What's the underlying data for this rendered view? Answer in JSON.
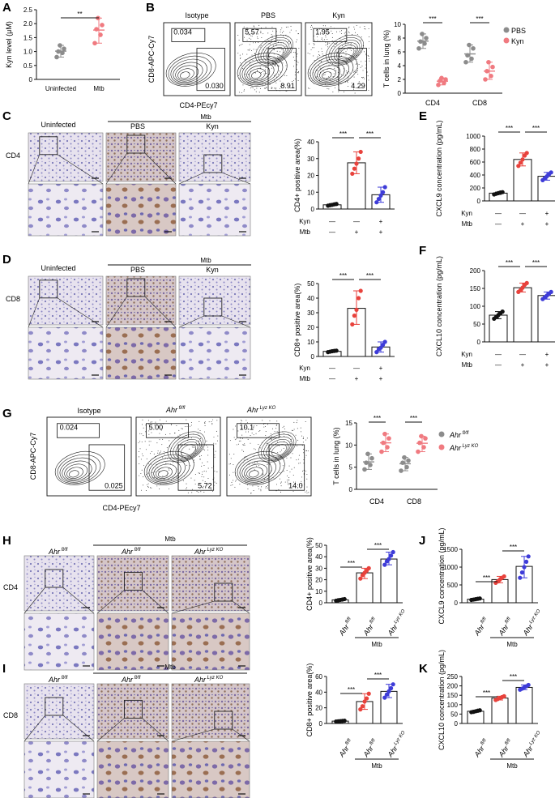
{
  "panel_labels": [
    "A",
    "B",
    "C",
    "D",
    "E",
    "F",
    "G",
    "H",
    "I",
    "J",
    "K"
  ],
  "colors": {
    "black": "#111111",
    "grey": "#8c8c8c",
    "red": "#e8423c",
    "pink": "#f07a80",
    "blue": "#3e3cd8",
    "tissue": "#ddd6e8",
    "tissue_b": "#c9b7b0"
  },
  "common": {
    "uninfected": "Uninfected",
    "mtb": "Mtb",
    "pbs": "PBS",
    "kyn": "Kyn",
    "isotype": "Isotype",
    "cd4": "CD4",
    "cd8": "CD8",
    "ahr_ff": "Ahr",
    "ff_sup": "fl/fl",
    "ahr_ko": "Ahr",
    "ko_sup": "Lyz KO",
    "minus": "—",
    "plus": "+",
    "cd8_axis": "CD8-APC-Cy7",
    "cd4_axis": "CD4-PEcy7"
  },
  "panel_b_flow": {
    "gates": [
      [
        "0.034",
        "0.030"
      ],
      [
        "5.57",
        "8.91"
      ],
      [
        "1.95",
        "4.29"
      ]
    ]
  },
  "panel_g_flow": {
    "gates": [
      [
        "0.024",
        "0.025"
      ],
      [
        "5.00",
        "5.72"
      ],
      [
        "10.1",
        "14.0"
      ]
    ]
  },
  "chart_data": [
    {
      "panel": "A",
      "type": "scatter",
      "ylabel": "Kyn level (μM)",
      "ylim": [
        0,
        2.5
      ],
      "yticks": [
        "0",
        "0.5",
        "1.0",
        "1.5",
        "2.0",
        "2.5"
      ],
      "categories": [
        "Uninfected",
        "Mtb"
      ],
      "values": [
        [
          0.8,
          0.95,
          1.0,
          1.1,
          1.22
        ],
        [
          1.3,
          1.6,
          1.8,
          1.95,
          2.2
        ]
      ],
      "means": [
        1.0,
        1.8
      ],
      "sig": "**"
    },
    {
      "panel": "B",
      "type": "scatter",
      "ylabel": "T cells in lung (%)",
      "ylim": [
        0,
        10
      ],
      "yticks": [
        "0",
        "2",
        "4",
        "6",
        "8",
        "10"
      ],
      "categories": [
        "CD4",
        "CD8"
      ],
      "legend": [
        "PBS",
        "Kyn"
      ],
      "series": [
        {
          "name": "PBS",
          "values": [
            [
              6.5,
              7.2,
              7.5,
              8.0,
              8.6
            ],
            [
              4.5,
              5.0,
              5.5,
              6.5,
              7.0
            ]
          ]
        },
        {
          "name": "Kyn",
          "values": [
            [
              1.2,
              1.5,
              1.8,
              2.0,
              2.2
            ],
            [
              2.0,
              2.5,
              3.2,
              3.8,
              4.5
            ]
          ]
        }
      ],
      "sig": [
        "***",
        "***"
      ]
    },
    {
      "panel": "C",
      "type": "bar",
      "ylabel": "CD4+ positive area(%)",
      "ylim": [
        0,
        40
      ],
      "yticks": [
        "0",
        "10",
        "20",
        "30",
        "40"
      ],
      "values": [
        2.5,
        27.5,
        8.5
      ],
      "points": [
        [
          2.0,
          2.3,
          2.5,
          2.8,
          3.0
        ],
        [
          21,
          24,
          27,
          30,
          34
        ],
        [
          4,
          6,
          8,
          10,
          13
        ]
      ],
      "sig": [
        "***",
        "***"
      ],
      "kyn": [
        "—",
        "—",
        "+"
      ],
      "mtb": [
        "—",
        "+",
        "+"
      ]
    },
    {
      "panel": "D",
      "type": "bar",
      "ylabel": "CD8+ positive area(%)",
      "ylim": [
        0,
        50
      ],
      "yticks": [
        "0",
        "10",
        "20",
        "30",
        "40",
        "50"
      ],
      "values": [
        3.5,
        33,
        6.5
      ],
      "points": [
        [
          3,
          3.3,
          3.6,
          3.8,
          4
        ],
        [
          22,
          28,
          32,
          40,
          45
        ],
        [
          3,
          5,
          6,
          8,
          10
        ]
      ],
      "sig": [
        "***",
        "***"
      ],
      "kyn": [
        "—",
        "—",
        "+"
      ],
      "mtb": [
        "—",
        "+",
        "+"
      ]
    },
    {
      "panel": "E",
      "type": "bar",
      "ylabel": "CXCL9 concentration (pg/mL)",
      "ylim": [
        0,
        1000
      ],
      "yticks": [
        "0",
        "200",
        "400",
        "600",
        "800",
        "1000"
      ],
      "values": [
        120,
        640,
        380
      ],
      "points": [
        [
          100,
          110,
          120,
          130,
          135
        ],
        [
          540,
          590,
          640,
          700,
          740
        ],
        [
          320,
          350,
          380,
          410,
          440
        ]
      ],
      "sig": [
        "***",
        "***"
      ],
      "kyn": [
        "—",
        "—",
        "+"
      ],
      "mtb": [
        "—",
        "+",
        "+"
      ]
    },
    {
      "panel": "F",
      "type": "bar",
      "ylabel": "CXCL10 concentration (pg/mL)",
      "ylim": [
        0,
        200
      ],
      "yticks": [
        "0",
        "50",
        "100",
        "150",
        "200"
      ],
      "values": [
        75,
        152,
        130
      ],
      "points": [
        [
          65,
          70,
          75,
          80,
          85
        ],
        [
          140,
          145,
          152,
          160,
          165
        ],
        [
          120,
          125,
          130,
          135,
          140
        ]
      ],
      "sig": [
        "***",
        "***"
      ],
      "kyn": [
        "—",
        "—",
        "+"
      ],
      "mtb": [
        "—",
        "+",
        "+"
      ]
    },
    {
      "panel": "G",
      "type": "scatter",
      "ylabel": "T cells in lung (%)",
      "ylim": [
        0,
        15
      ],
      "yticks": [
        "0",
        "5",
        "10",
        "15"
      ],
      "categories": [
        "CD4",
        "CD8"
      ],
      "series": [
        {
          "name": "Ahr fl/fl",
          "values": [
            [
              4.5,
              5.5,
              6,
              7,
              8
            ],
            [
              4.2,
              5,
              6,
              6.5,
              7.2
            ]
          ]
        },
        {
          "name": "Ahr Lyz KO",
          "values": [
            [
              8.5,
              9.5,
              10.5,
              11.5,
              12.5
            ],
            [
              8.5,
              9.5,
              10.5,
              11.5,
              12
            ]
          ]
        }
      ],
      "sig": [
        "***",
        "***"
      ]
    },
    {
      "panel": "H",
      "type": "bar",
      "ylabel": "CD4+ positive area(%)",
      "ylim": [
        0,
        50
      ],
      "yticks": [
        "0",
        "10",
        "20",
        "30",
        "40",
        "50"
      ],
      "values": [
        2.5,
        26,
        38
      ],
      "points": [
        [
          1.8,
          2.2,
          2.5,
          2.8,
          3.2
        ],
        [
          21,
          24,
          26,
          28,
          30
        ],
        [
          33,
          36,
          38,
          41,
          44
        ]
      ],
      "sig": [
        "***",
        "***"
      ]
    },
    {
      "panel": "I",
      "type": "bar",
      "ylabel": "CD8+ positive area(%)",
      "ylim": [
        0,
        60
      ],
      "yticks": [
        "0",
        "20",
        "40",
        "60"
      ],
      "values": [
        3,
        28,
        41
      ],
      "points": [
        [
          2.5,
          2.8,
          3,
          3.2,
          3.5
        ],
        [
          18,
          22,
          28,
          32,
          38
        ],
        [
          33,
          37,
          41,
          45,
          50
        ]
      ],
      "sig": [
        "***",
        "***"
      ]
    },
    {
      "panel": "J",
      "type": "bar",
      "ylabel": "CXCL9 concentration (pg/mL)",
      "ylim": [
        0,
        1500
      ],
      "yticks": [
        "0",
        "500",
        "1000",
        "1500"
      ],
      "values": [
        100,
        650,
        1020
      ],
      "points": [
        [
          80,
          90,
          100,
          110,
          120
        ],
        [
          560,
          600,
          650,
          700,
          740
        ],
        [
          700,
          850,
          1000,
          1150,
          1300
        ]
      ],
      "sig": [
        "***",
        "***"
      ]
    },
    {
      "panel": "K",
      "type": "bar",
      "ylabel": "CXCL10 concentration (pg/mL)",
      "ylim": [
        0,
        250
      ],
      "yticks": [
        "0",
        "50",
        "100",
        "150",
        "200",
        "250"
      ],
      "values": [
        65,
        135,
        192
      ],
      "points": [
        [
          60,
          62,
          65,
          68,
          70
        ],
        [
          125,
          130,
          135,
          140,
          145
        ],
        [
          180,
          185,
          192,
          198,
          205
        ]
      ],
      "sig": [
        "***",
        "***"
      ]
    }
  ]
}
